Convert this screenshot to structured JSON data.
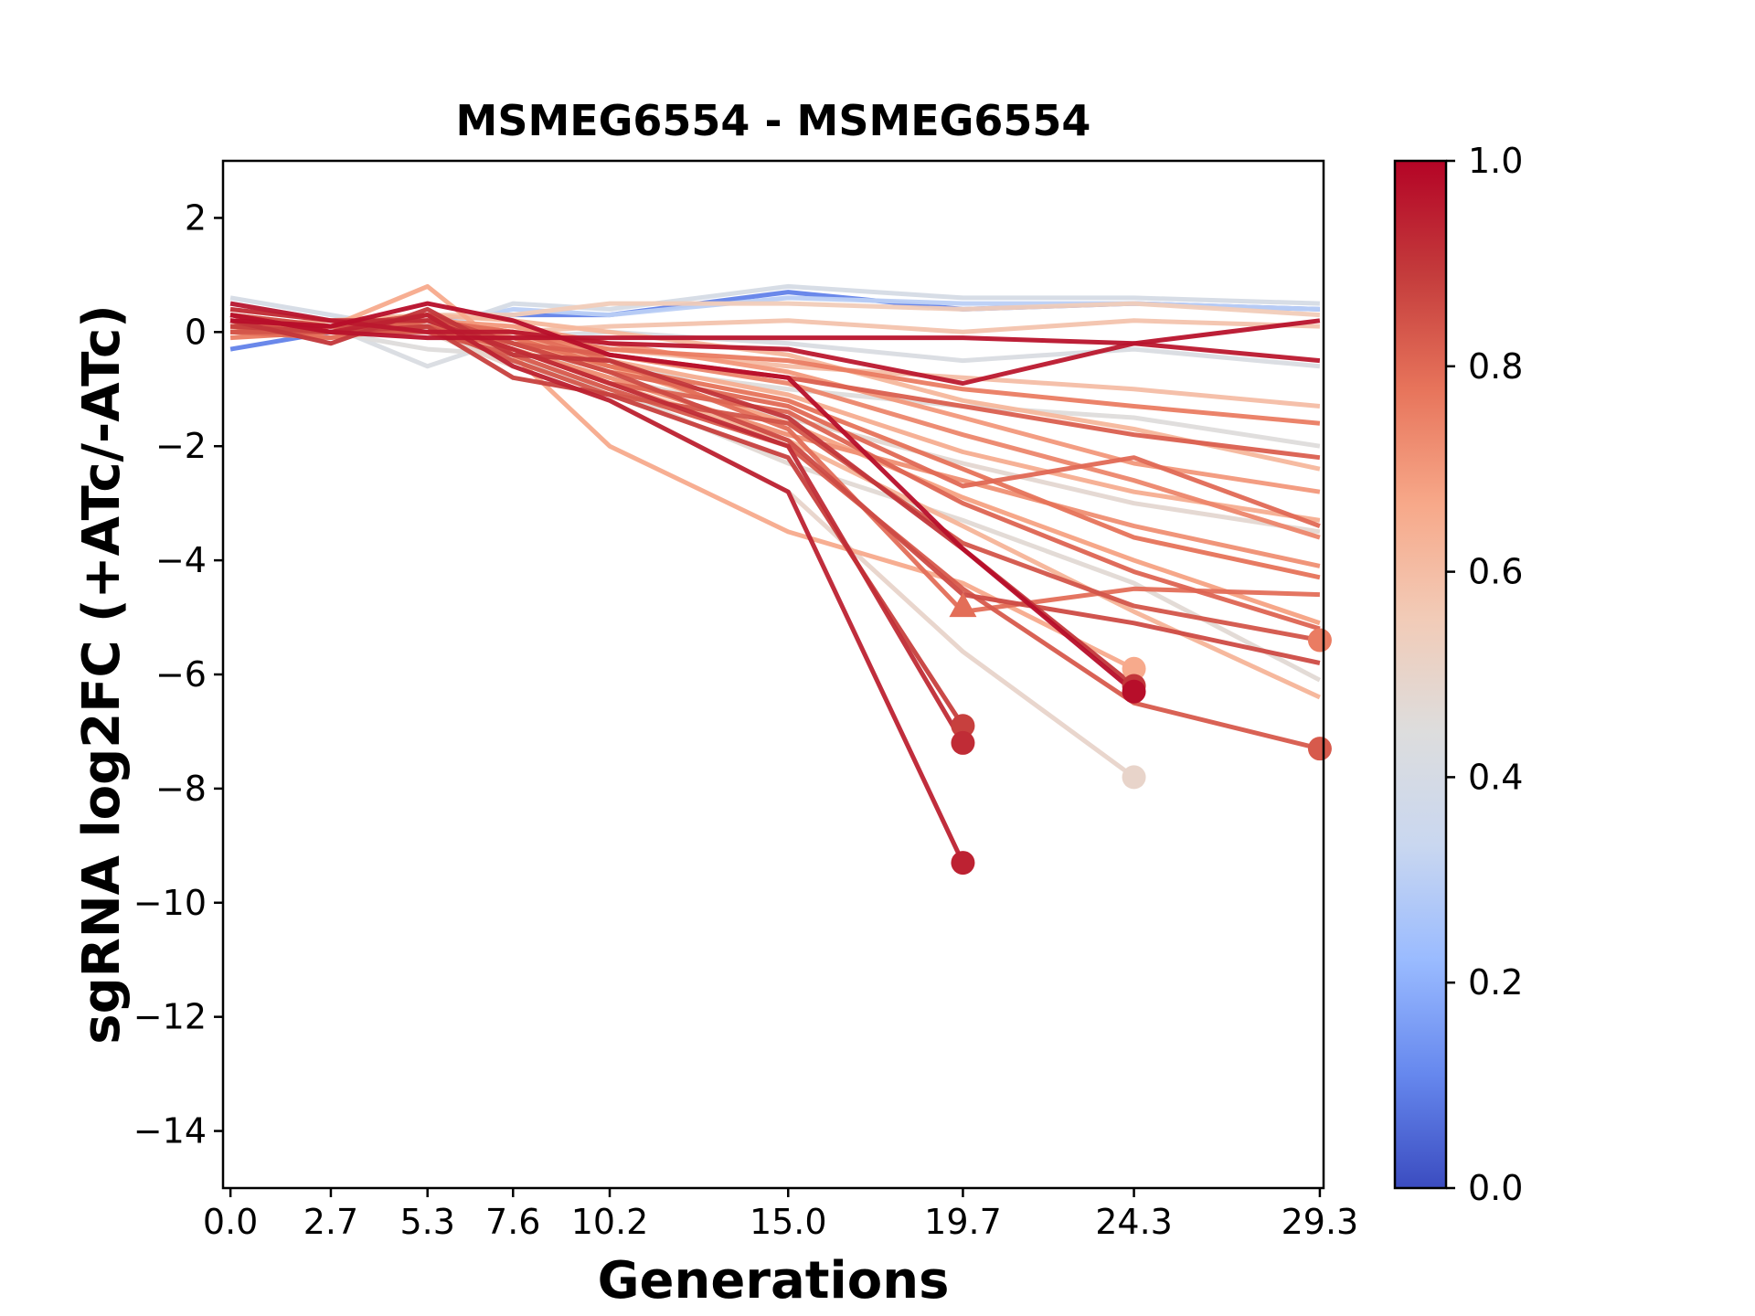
{
  "chart_data": {
    "type": "line",
    "title": "MSMEG6554 - MSMEG6554",
    "xlabel": "Generations",
    "ylabel": "sgRNA log2FC (+ATc/-ATc)",
    "x": [
      0.0,
      2.7,
      5.3,
      7.6,
      10.2,
      15.0,
      19.7,
      24.3,
      29.3
    ],
    "x_tick_labels": [
      "0.0",
      "2.7",
      "5.3",
      "7.6",
      "10.2",
      "15.0",
      "19.7",
      "24.3",
      "29.3"
    ],
    "xlim": [
      -0.2,
      29.4
    ],
    "ylim": [
      -15,
      3
    ],
    "y_ticks": [
      2,
      0,
      -2,
      -4,
      -6,
      -8,
      -10,
      -12,
      -14
    ],
    "y_tick_labels": [
      "2",
      "0",
      "−2",
      "−4",
      "−6",
      "−8",
      "−10",
      "−12",
      "−14"
    ],
    "grid": false,
    "colormap": "coolwarm",
    "colorbar": {
      "range": [
        0.0,
        1.0
      ],
      "ticks": [
        0.0,
        0.2,
        0.4,
        0.6,
        0.8,
        1.0
      ],
      "tick_labels": [
        "0.0",
        "0.2",
        "0.4",
        "0.6",
        "0.8",
        "1.0"
      ],
      "colors": [
        "#3b4cc0",
        "#6688ee",
        "#9abbff",
        "#c9d7f0",
        "#dddddd",
        "#f2cbb7",
        "#f7a889",
        "#e7745b",
        "#c43c3c",
        "#b40426"
      ]
    },
    "series": [
      {
        "c": 0.1,
        "y": [
          -0.3,
          0.0,
          0.2,
          0.3,
          0.3,
          0.7,
          0.4,
          0.5,
          0.4
        ]
      },
      {
        "c": 0.3,
        "y": [
          0.5,
          0.2,
          0.1,
          0.4,
          0.3,
          0.6,
          0.5,
          0.5,
          0.4
        ]
      },
      {
        "c": 0.4,
        "y": [
          0.6,
          0.3,
          0.0,
          0.5,
          0.4,
          0.8,
          0.6,
          0.6,
          0.5
        ]
      },
      {
        "c": 0.42,
        "y": [
          0.3,
          0.1,
          -0.6,
          -0.1,
          0.0,
          -0.2,
          -0.5,
          -0.3,
          -0.6
        ]
      },
      {
        "c": 0.45,
        "y": [
          0.2,
          0.0,
          -0.3,
          -0.4,
          -0.6,
          -1.0,
          -1.3,
          -1.5,
          -2.0
        ]
      },
      {
        "c": 0.48,
        "y": [
          0.0,
          -0.1,
          0.1,
          -0.3,
          -0.8,
          -1.5,
          -2.3,
          -3.0,
          -3.5
        ]
      },
      {
        "c": 0.47,
        "y": [
          0.1,
          0.0,
          0.0,
          -0.5,
          -1.0,
          -2.3,
          -3.3,
          -4.4,
          -6.1
        ]
      },
      {
        "c": 0.5,
        "y": [
          0.2,
          0.0,
          0.0,
          -0.6,
          -1.2,
          -2.8,
          -5.6,
          -7.8,
          null
        ]
      },
      {
        "c": 0.55,
        "y": [
          0.4,
          0.2,
          0.3,
          0.3,
          0.5,
          0.5,
          0.4,
          0.5,
          0.3
        ]
      },
      {
        "c": 0.58,
        "y": [
          0.2,
          0.1,
          0.0,
          0.0,
          0.1,
          0.2,
          0.0,
          0.2,
          0.1
        ]
      },
      {
        "c": 0.6,
        "y": [
          0.0,
          0.0,
          0.2,
          -0.1,
          -0.3,
          -0.6,
          -0.8,
          -1.0,
          -1.3
        ]
      },
      {
        "c": 0.62,
        "y": [
          0.1,
          0.2,
          0.3,
          0.2,
          0.0,
          -0.4,
          -1.2,
          -1.7,
          -2.4
        ]
      },
      {
        "c": 0.65,
        "y": [
          0.0,
          0.1,
          0.3,
          -0.1,
          -0.5,
          -1.1,
          -2.1,
          -2.8,
          -3.3
        ]
      },
      {
        "c": 0.68,
        "y": [
          0.1,
          -0.1,
          0.1,
          -0.2,
          -0.6,
          -1.6,
          -2.9,
          -4.0,
          -5.1
        ]
      },
      {
        "c": 0.7,
        "y": [
          0.2,
          0.0,
          0.2,
          0.1,
          -0.2,
          -0.7,
          -1.5,
          -2.3,
          -2.8
        ]
      },
      {
        "c": 0.66,
        "y": [
          0.3,
          0.1,
          0.8,
          -0.4,
          -2.0,
          -3.5,
          -4.4,
          -5.9,
          null
        ]
      },
      {
        "c": 0.63,
        "y": [
          0.0,
          0.1,
          0.0,
          -0.3,
          -0.9,
          -1.9,
          -3.4,
          -4.9,
          -6.4
        ]
      },
      {
        "c": 0.72,
        "y": [
          0.1,
          0.0,
          0.2,
          -0.3,
          -0.8,
          -1.8,
          -2.6,
          -3.4,
          -4.1
        ]
      },
      {
        "c": 0.74,
        "y": [
          0.0,
          0.1,
          0.1,
          0.0,
          -0.4,
          -0.9,
          -1.8,
          -2.6,
          -3.6
        ]
      },
      {
        "c": 0.76,
        "y": [
          -0.1,
          0.0,
          0.2,
          0.0,
          -0.3,
          -0.5,
          -1.0,
          -1.3,
          -1.6
        ]
      },
      {
        "c": 0.78,
        "y": [
          0.2,
          0.1,
          0.0,
          -0.1,
          -0.6,
          -1.2,
          -2.4,
          -3.6,
          -4.3
        ]
      },
      {
        "c": 0.8,
        "y": [
          0.0,
          0.1,
          0.3,
          -0.2,
          -0.7,
          -1.3,
          -2.7,
          -2.2,
          -3.4
        ]
      },
      {
        "c": 0.81,
        "y": [
          0.1,
          0.0,
          0.1,
          -0.3,
          -0.9,
          -1.4,
          -3.0,
          -4.2,
          -5.2
        ]
      },
      {
        "c": 0.79,
        "y": [
          0.0,
          -0.1,
          0.2,
          0.0,
          -0.5,
          -1.7,
          -4.9,
          -4.5,
          -4.6
        ]
      },
      {
        "c": 0.83,
        "y": [
          0.2,
          0.0,
          0.0,
          -0.4,
          -1.0,
          -2.0,
          -4.5,
          -6.5,
          -7.3
        ]
      },
      {
        "c": 0.82,
        "y": [
          0.1,
          0.1,
          0.2,
          -0.2,
          -0.4,
          -0.8,
          -1.3,
          -1.8,
          -2.2
        ]
      },
      {
        "c": 0.84,
        "y": [
          0.0,
          0.0,
          0.1,
          -0.5,
          -1.1,
          -1.6,
          -3.7,
          -4.8,
          -5.4
        ]
      },
      {
        "c": 0.86,
        "y": [
          0.3,
          0.1,
          0.3,
          -0.2,
          -0.7,
          -1.9,
          -4.6,
          -5.1,
          -5.8
        ]
      },
      {
        "c": 0.88,
        "y": [
          0.1,
          0.0,
          0.1,
          -0.8,
          -1.1,
          -2.2,
          -6.9,
          null,
          null
        ]
      },
      {
        "c": 0.9,
        "y": [
          0.2,
          -0.2,
          0.4,
          -0.4,
          -0.5,
          -1.5,
          -3.8,
          -6.2,
          null
        ]
      },
      {
        "c": 0.92,
        "y": [
          0.4,
          0.2,
          0.2,
          -0.3,
          -0.9,
          -2.0,
          -7.2,
          null,
          null
        ]
      },
      {
        "c": 0.94,
        "y": [
          0.3,
          0.0,
          0.3,
          -0.6,
          -1.2,
          -2.8,
          -9.3,
          null,
          null
        ]
      },
      {
        "c": 0.96,
        "y": [
          0.5,
          0.2,
          0.0,
          0.0,
          -0.2,
          -0.3,
          -0.9,
          -0.2,
          -0.5
        ]
      },
      {
        "c": 0.97,
        "y": [
          0.3,
          0.0,
          -0.1,
          -0.1,
          -0.1,
          -0.1,
          -0.1,
          -0.2,
          0.2
        ]
      },
      {
        "c": 0.98,
        "y": [
          0.2,
          0.1,
          0.5,
          0.2,
          -0.4,
          -0.8,
          -3.8,
          -6.3,
          null
        ]
      }
    ],
    "markers": [
      {
        "x": 19.7,
        "y": -4.8,
        "c": 0.79,
        "shape": "triangle"
      },
      {
        "x": 19.7,
        "y": -6.9,
        "c": 0.88,
        "shape": "circle"
      },
      {
        "x": 19.7,
        "y": -7.2,
        "c": 0.92,
        "shape": "circle"
      },
      {
        "x": 19.7,
        "y": -9.3,
        "c": 0.94,
        "shape": "circle"
      },
      {
        "x": 24.3,
        "y": -5.9,
        "c": 0.66,
        "shape": "circle"
      },
      {
        "x": 24.3,
        "y": -6.2,
        "c": 0.9,
        "shape": "circle"
      },
      {
        "x": 24.3,
        "y": -6.3,
        "c": 0.98,
        "shape": "circle"
      },
      {
        "x": 24.3,
        "y": -7.8,
        "c": 0.5,
        "shape": "circle"
      },
      {
        "x": 29.3,
        "y": -5.4,
        "c": 0.76,
        "shape": "circle"
      },
      {
        "x": 29.3,
        "y": -7.3,
        "c": 0.83,
        "shape": "circle"
      }
    ]
  }
}
